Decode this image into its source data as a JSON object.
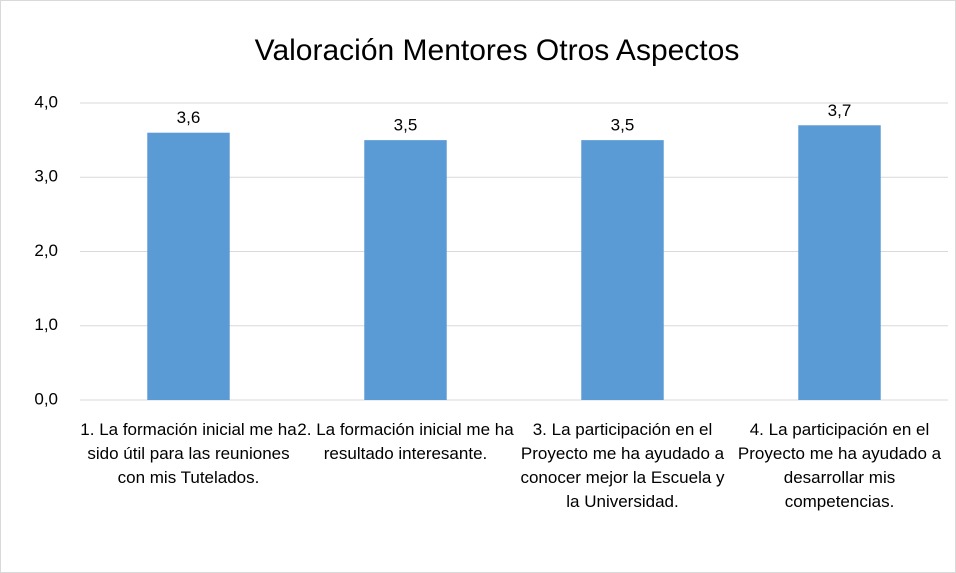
{
  "chart_data": {
    "type": "bar",
    "title": "Valoración Mentores Otros Aspectos",
    "categories": [
      "1. La formación inicial me ha sido útil para las reuniones con mis Tutelados.",
      "2. La formación inicial me ha resultado interesante.",
      "3. La participación en el Proyecto me ha ayudado a conocer mejor la Escuela y la Universidad.",
      "4. La participación en el Proyecto me ha ayudado a desarrollar mis competencias."
    ],
    "values": [
      3.6,
      3.5,
      3.5,
      3.7
    ],
    "value_labels": [
      "3,6",
      "3,5",
      "3,5",
      "3,7"
    ],
    "color": "#5b9bd5",
    "ylim": [
      0,
      4
    ],
    "yticks": [
      {
        "value": 0,
        "label": "0,0"
      },
      {
        "value": 1,
        "label": "1,0"
      },
      {
        "value": 2,
        "label": "2,0"
      },
      {
        "value": 3,
        "label": "3,0"
      },
      {
        "value": 4,
        "label": "4,0"
      }
    ],
    "grid": true
  }
}
